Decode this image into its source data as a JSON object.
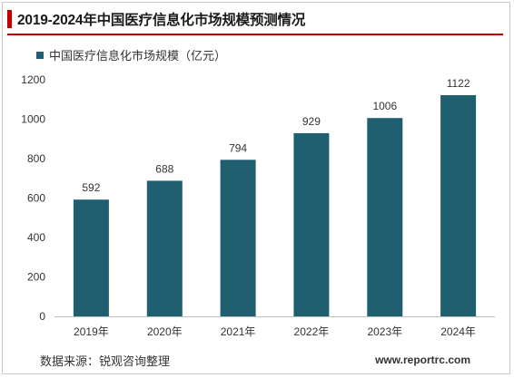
{
  "title": "2019-2024年中国医疗信息化市场规模预测情况",
  "source": "数据来源：锐观咨询整理",
  "website": "www.reportrc.com",
  "colors": {
    "bar": "#1f5f70",
    "accent": "#c00000"
  },
  "chart_data": {
    "type": "bar",
    "categories": [
      "2019年",
      "2020年",
      "2021年",
      "2022年",
      "2023年",
      "2024年"
    ],
    "series": [
      {
        "name": "中国医疗信息化市场规模（亿元）",
        "values": [
          592,
          688,
          794,
          929,
          1006,
          1122
        ]
      }
    ],
    "ylim": [
      0,
      1200
    ],
    "yticks": [
      0,
      200,
      400,
      600,
      800,
      1000,
      1200
    ],
    "grid": false,
    "legend": "top-left",
    "data_labels": true
  }
}
